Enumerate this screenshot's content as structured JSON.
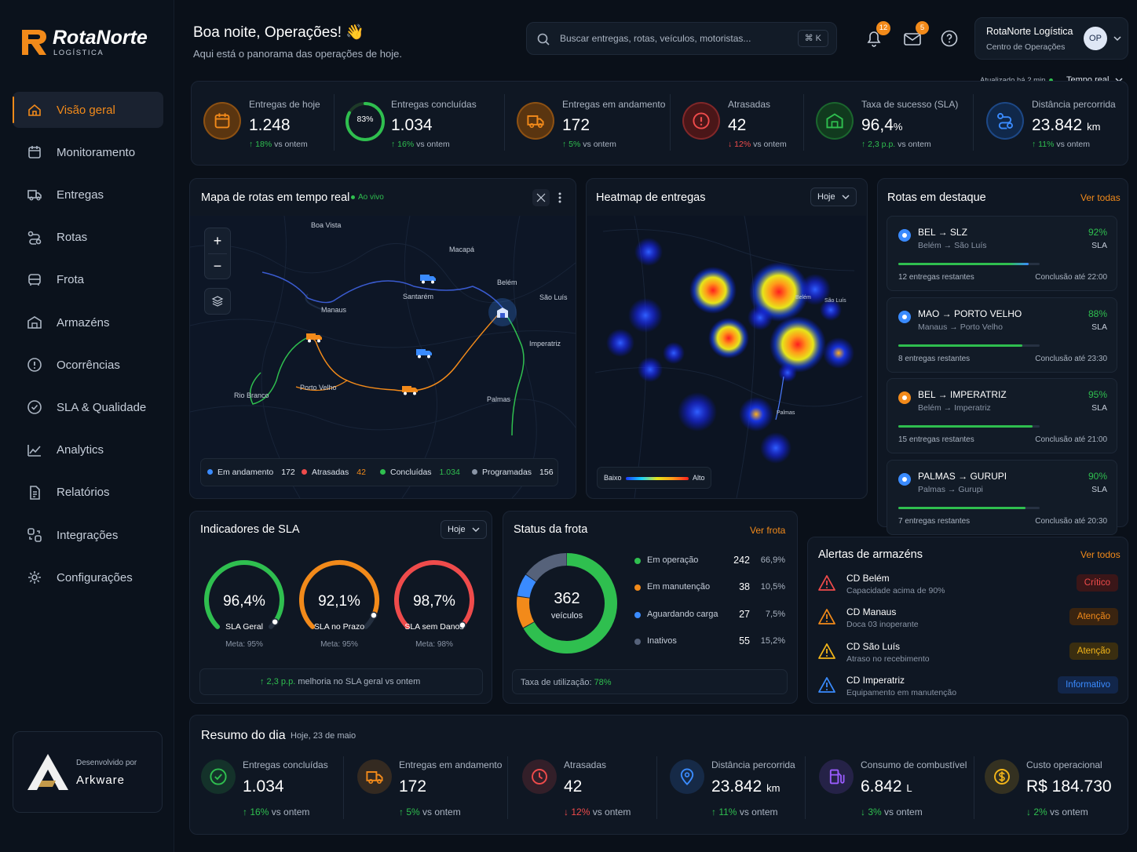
{
  "brand": {
    "name": "RotaNorte",
    "sub": "LOGÍSTICA",
    "dev_label": "Desenvolvido por",
    "dev_name": "Arkware"
  },
  "header": {
    "greeting": "Boa noite, Operações! 👋",
    "subtitle": "Aqui está o panorama das operações de hoje.",
    "search_placeholder": "Buscar entregas, rotas, veículos, motoristas...",
    "shortcut": "⌘ K",
    "notif_count": "12",
    "mail_count": "5",
    "company": "RotaNorte Logística",
    "company_sub": "Centro de Operações",
    "avatar": "OP",
    "updated": "Atualizado há 2 min",
    "mode": "Tempo real"
  },
  "nav": [
    {
      "label": "Visão geral",
      "icon": "home-icon"
    },
    {
      "label": "Monitoramento",
      "icon": "calendar-icon"
    },
    {
      "label": "Entregas",
      "icon": "truck-icon"
    },
    {
      "label": "Rotas",
      "icon": "route-icon"
    },
    {
      "label": "Frota",
      "icon": "bus-icon"
    },
    {
      "label": "Armazéns",
      "icon": "warehouse-icon"
    },
    {
      "label": "Ocorrências",
      "icon": "alert-circle-icon"
    },
    {
      "label": "SLA & Qualidade",
      "icon": "check-circle-icon"
    },
    {
      "label": "Analytics",
      "icon": "analytics-icon"
    },
    {
      "label": "Relatórios",
      "icon": "report-icon"
    },
    {
      "label": "Integrações",
      "icon": "integrations-icon"
    },
    {
      "label": "Configurações",
      "icon": "gear-icon"
    }
  ],
  "kpis": [
    {
      "label": "Entregas de hoje",
      "value": "1.248",
      "unit": "",
      "change": "18%",
      "dir": "up",
      "vs": "vs ontem",
      "color": "#f28a1a"
    },
    {
      "label": "Entregas concluídas",
      "value": "1.034",
      "unit": "",
      "change": "16%",
      "dir": "up",
      "vs": "vs ontem",
      "ring": "83%",
      "ring_fraction": 0.83
    },
    {
      "label": "Entregas em andamento",
      "value": "172",
      "unit": "",
      "change": "5%",
      "dir": "up",
      "vs": "vs ontem",
      "color": "#f28a1a"
    },
    {
      "label": "Atrasadas",
      "value": "42",
      "unit": "",
      "change": "12%",
      "dir": "down",
      "vs": "vs ontem",
      "color": "#ef4b4b"
    },
    {
      "label": "Taxa de sucesso (SLA)",
      "value": "96,4",
      "unit": "%",
      "change": "2,3 p.p.",
      "dir": "up",
      "vs": "vs ontem",
      "color": "#2fbf4f"
    },
    {
      "label": "Distância percorrida",
      "value": "23.842",
      "unit": "km",
      "change": "11%",
      "dir": "up",
      "vs": "vs ontem",
      "color": "#3a8bff"
    }
  ],
  "map": {
    "title": "Mapa de rotas em tempo real",
    "live": "Ao vivo",
    "cities": [
      "Boa Vista",
      "Macapá",
      "Belém",
      "Santarém",
      "São Luís",
      "Manaus",
      "Imperatriz",
      "Porto Velho",
      "Rio Branco",
      "Palmas"
    ],
    "legend": [
      {
        "label": "Em andamento",
        "count": "172",
        "color": "#3a8bff",
        "count_color": "#e8edf4"
      },
      {
        "label": "Atrasadas",
        "count": "42",
        "color": "#ef4b4b",
        "count_color": "#f28a1a"
      },
      {
        "label": "Concluídas",
        "count": "1.034",
        "color": "#2fbf4f",
        "count_color": "#2fbf4f"
      },
      {
        "label": "Programadas",
        "count": "156",
        "color": "#8a95a6",
        "count_color": "#e8edf4"
      }
    ]
  },
  "heatmap": {
    "title": "Heatmap de entregas",
    "period": "Hoje",
    "low": "Baixo",
    "high": "Alto",
    "cities": [
      "Belém",
      "São Luís",
      "Palmas"
    ]
  },
  "routes": {
    "title": "Rotas em destaque",
    "link": "Ver todas",
    "items": [
      {
        "code": "BEL → SLZ",
        "name": "Belém → São Luís",
        "pct": "92%",
        "sla": "SLA",
        "remaining": "12 entregas restantes",
        "eta": "Conclusão até 22:00",
        "progress": 0.92,
        "color": "#3a8bff"
      },
      {
        "code": "MAO → PORTO VELHO",
        "name": "Manaus → Porto Velho",
        "pct": "88%",
        "sla": "SLA",
        "remaining": "8 entregas restantes",
        "eta": "Conclusão até 23:30",
        "progress": 0.88,
        "color": "#3a8bff"
      },
      {
        "code": "BEL → IMPERATRIZ",
        "name": "Belém → Imperatriz",
        "pct": "95%",
        "sla": "SLA",
        "remaining": "15 entregas restantes",
        "eta": "Conclusão até 21:00",
        "progress": 0.95,
        "color": "#f28a1a"
      },
      {
        "code": "PALMAS → GURUPI",
        "name": "Palmas → Gurupi",
        "pct": "90%",
        "sla": "SLA",
        "remaining": "7 entregas restantes",
        "eta": "Conclusão até 20:30",
        "progress": 0.9,
        "color": "#3a8bff"
      }
    ]
  },
  "sla": {
    "title": "Indicadores de SLA",
    "period": "Hoje",
    "gauges": [
      {
        "value": "96,4%",
        "label": "SLA Geral",
        "meta": "Meta: 95%",
        "fraction": 0.964,
        "color": "#2fbf4f"
      },
      {
        "value": "92,1%",
        "label": "SLA no Prazo",
        "meta": "Meta: 95%",
        "fraction": 0.921,
        "color": "#f28a1a"
      },
      {
        "value": "98,7%",
        "label": "SLA sem Danos",
        "meta": "Meta: 98%",
        "fraction": 0.987,
        "color": "#ef4b4b"
      }
    ],
    "footer_change": "2,3 p.p.",
    "footer_text": "melhoria no SLA geral vs ontem"
  },
  "fleet": {
    "title": "Status da frota",
    "link": "Ver frota",
    "total": "362",
    "total_label": "veículos",
    "items": [
      {
        "label": "Em operação",
        "count": "242",
        "pct": "66,9%",
        "color": "#2fbf4f",
        "value": 242
      },
      {
        "label": "Em manutenção",
        "count": "38",
        "pct": "10,5%",
        "color": "#f28a1a",
        "value": 38
      },
      {
        "label": "Aguardando carga",
        "count": "27",
        "pct": "7,5%",
        "color": "#3a8bff",
        "value": 27
      },
      {
        "label": "Inativos",
        "count": "55",
        "pct": "15,2%",
        "color": "#56627a",
        "value": 55
      }
    ],
    "util_label": "Taxa de utilização:",
    "util_value": "78%"
  },
  "alerts": {
    "title": "Alertas de armazéns",
    "link": "Ver todos",
    "items": [
      {
        "title": "CD Belém",
        "desc": "Capacidade acima de 90%",
        "badge": "Crítico",
        "color": "#ef4b4b",
        "bg": "#3a1618"
      },
      {
        "title": "CD Manaus",
        "desc": "Doca 03 inoperante",
        "badge": "Atenção",
        "color": "#f28a1a",
        "bg": "#3a2410"
      },
      {
        "title": "CD São Luís",
        "desc": "Atraso no recebimento",
        "badge": "Atenção",
        "color": "#f2b51a",
        "bg": "#3a2e10"
      },
      {
        "title": "CD Imperatriz",
        "desc": "Equipamento em manutenção",
        "badge": "Informativo",
        "color": "#3a8bff",
        "bg": "#12264a"
      }
    ]
  },
  "summary": {
    "title": "Resumo do dia",
    "date": "Hoje, 23 de maio",
    "items": [
      {
        "label": "Entregas concluídas",
        "value": "1.034",
        "unit": "",
        "change": "16%",
        "dir": "up",
        "vs": "vs ontem",
        "color": "#2fbf4f"
      },
      {
        "label": "Entregas em andamento",
        "value": "172",
        "unit": "",
        "change": "5%",
        "dir": "up",
        "vs": "vs ontem",
        "color": "#f28a1a"
      },
      {
        "label": "Atrasadas",
        "value": "42",
        "unit": "",
        "change": "12%",
        "dir": "down",
        "vs": "vs ontem",
        "color": "#ef4b4b"
      },
      {
        "label": "Distância percorrida",
        "value": "23.842",
        "unit": "km",
        "change": "11%",
        "dir": "up",
        "vs": "vs ontem",
        "color": "#3a8bff"
      },
      {
        "label": "Consumo de combustível",
        "value": "6.842",
        "unit": "L",
        "change": "3%",
        "dir": "down",
        "vs": "vs ontem",
        "color": "#9a5cff"
      },
      {
        "label": "Custo operacional",
        "value": "R$ 184.730",
        "unit": "",
        "change": "2%",
        "dir": "down",
        "vs": "vs ontem",
        "color": "#f2b51a"
      }
    ]
  }
}
